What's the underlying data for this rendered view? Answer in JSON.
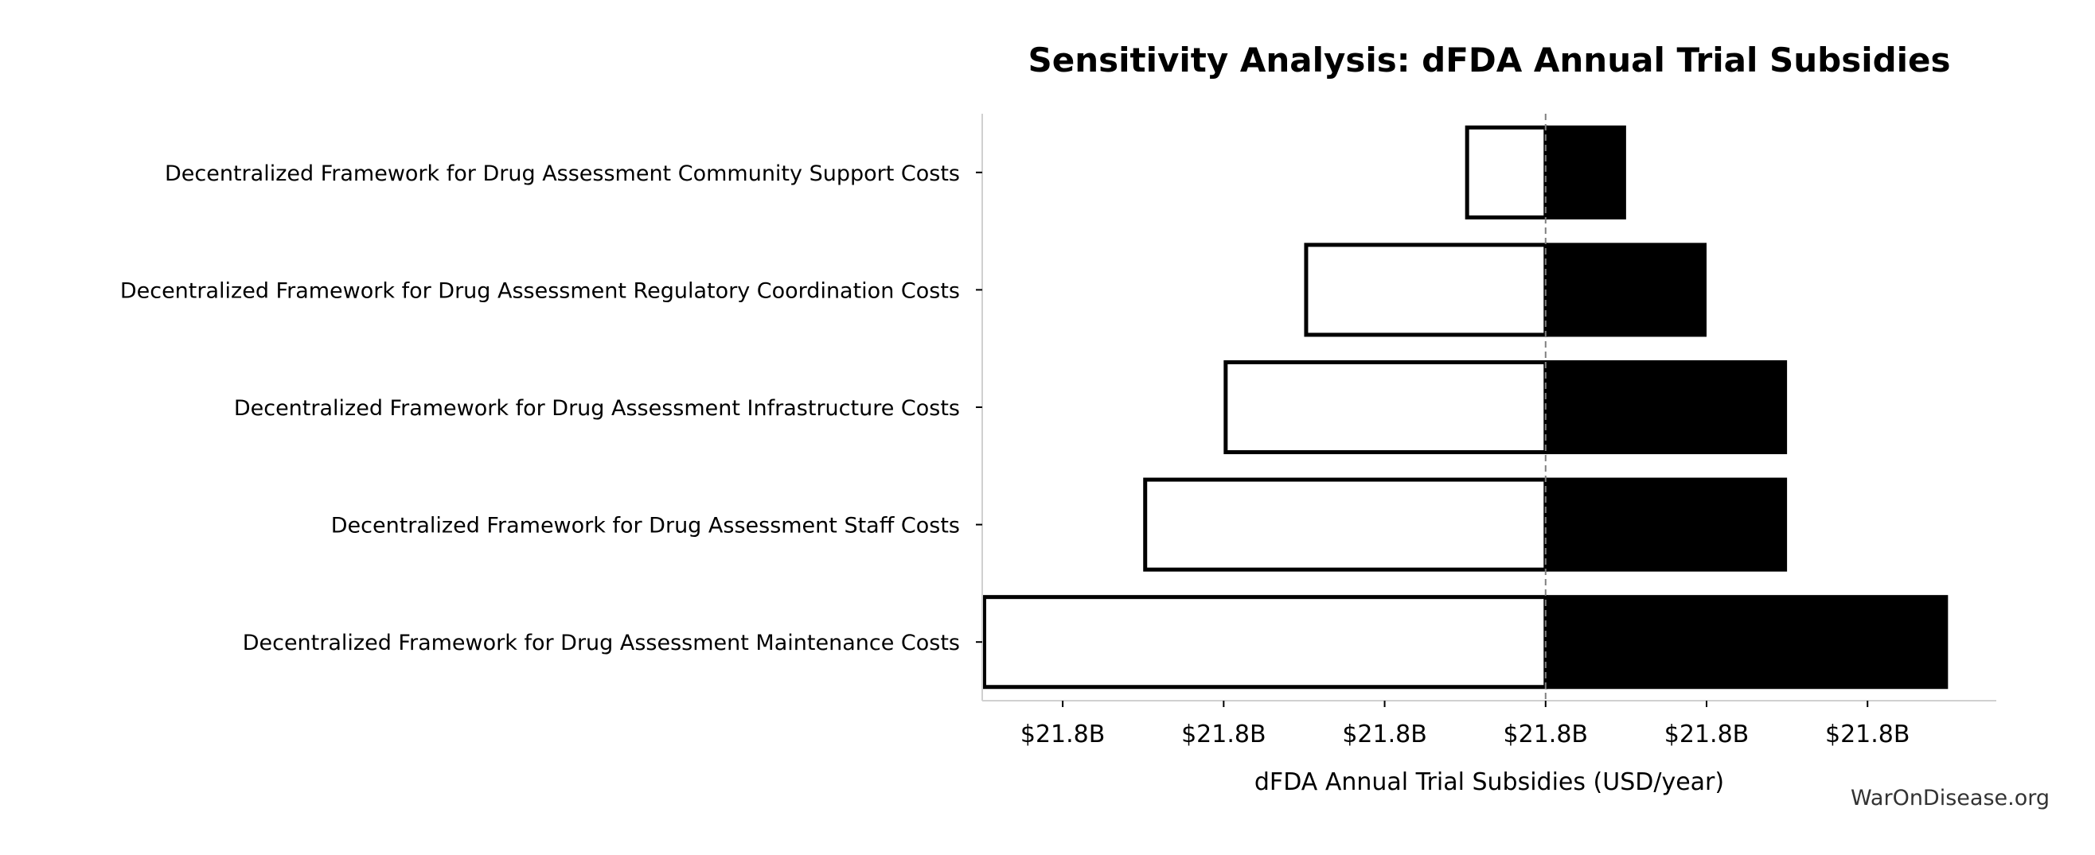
{
  "chart_data": {
    "type": "bar",
    "orientation": "horizontal",
    "subtype": "tornado",
    "title": "Sensitivity Analysis: dFDA Annual Trial Subsidies",
    "xlabel": "dFDA Annual Trial Subsidies (USD/year)",
    "ylabel": "",
    "baseline": 0,
    "xlim": [
      -3.5,
      2.8
    ],
    "x_ticks": [
      -3,
      -2,
      -1,
      0,
      1,
      2
    ],
    "x_tick_labels": [
      "$21.8B",
      "$21.8B",
      "$21.8B",
      "$21.8B",
      "$21.8B",
      "$21.8B"
    ],
    "categories": [
      "Decentralized Framework for Drug Assessment Community Support Costs",
      "Decentralized Framework for Drug Assessment Regulatory Coordination Costs",
      "Decentralized Framework for Drug Assessment Infrastructure Costs",
      "Decentralized Framework for Drug Assessment Staff Costs",
      "Decentralized Framework for Drug Assessment Maintenance Costs"
    ],
    "series": [
      {
        "values": [
          -0.5,
          -1.5,
          -2.0,
          -2.5,
          -3.5
        ],
        "fill": "#ffffff",
        "stroke": "#000000"
      },
      {
        "values": [
          0.5,
          1.0,
          1.5,
          1.5,
          2.5
        ],
        "fill": "#000000"
      }
    ],
    "grid": false,
    "reference_line_style": "dashed",
    "reference_line_color": "#808080"
  },
  "watermark": "WarOnDisease.org"
}
